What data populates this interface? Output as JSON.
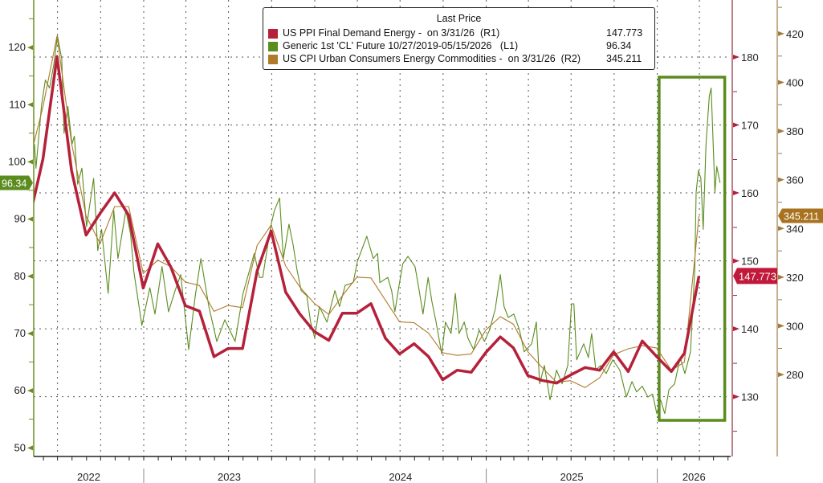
{
  "chart_data": {
    "type": "line",
    "legend": {
      "title": "Last Price",
      "placement": "top-center",
      "entries": [
        {
          "label": "US PPI Final Demand Energy -  on 3/31/26  (R1)",
          "value": "147.773",
          "color": "#b5213a"
        },
        {
          "label": "Generic 1st 'CL' Future 10/27/2019-05/15/2026   (L1)",
          "value": "96.34",
          "color": "#5b8c1e"
        },
        {
          "label": "US CPI Urban Consumers Energy Commodities -  on 3/31/26  (R2)",
          "value": "345.211",
          "color": "#b07a2a"
        }
      ]
    },
    "x_axis": {
      "labels": [
        "2022",
        "2023",
        "2024",
        "2025",
        "2026"
      ],
      "range": [
        "2022-05-12",
        "2026-06-10"
      ]
    },
    "axes": {
      "L1": {
        "range": [
          48.5,
          128.3
        ],
        "ticks": [
          "50",
          "60",
          "70",
          "80",
          "90",
          "100",
          "110",
          "120"
        ],
        "color": "#6b8e23",
        "last_label": "96.34"
      },
      "R1": {
        "range": [
          121.2,
          188.4
        ],
        "ticks": [
          "130",
          "140",
          "150",
          "160",
          "170",
          "180"
        ],
        "color": "#8b2a3a",
        "last_label": "147.773"
      },
      "R2": {
        "range": [
          246.4,
          433.8
        ],
        "ticks": [
          "280",
          "300",
          "320",
          "340",
          "360",
          "380",
          "400",
          "420"
        ],
        "color": "#a07a40",
        "last_label": "345.211"
      }
    },
    "grid": true,
    "highlight_box": {
      "from": "2026-01-05",
      "to": "2026-05-25",
      "color": "#5b8c1e"
    },
    "series": [
      {
        "name": "US PPI Final Demand Energy",
        "axis": "R1",
        "frequency": "monthly",
        "color": "#b5213a",
        "points": [
          [
            "2022-04",
            155.6
          ],
          [
            "2022-05",
            165.0
          ],
          [
            "2022-06",
            180.1
          ],
          [
            "2022-07",
            163.3
          ],
          [
            "2022-08",
            153.8
          ],
          [
            "2022-09",
            157.0
          ],
          [
            "2022-10",
            160.0
          ],
          [
            "2022-11",
            156.7
          ],
          [
            "2022-12",
            146.0
          ],
          [
            "2023-01",
            152.5
          ],
          [
            "2023-02",
            149.1
          ],
          [
            "2023-03",
            143.4
          ],
          [
            "2023-04",
            142.6
          ],
          [
            "2023-05",
            135.9
          ],
          [
            "2023-06",
            137.1
          ],
          [
            "2023-07",
            137.1
          ],
          [
            "2023-08",
            148.5
          ],
          [
            "2023-09",
            154.4
          ],
          [
            "2023-10",
            145.4
          ],
          [
            "2023-11",
            142.2
          ],
          [
            "2023-12",
            139.6
          ],
          [
            "2024-01",
            138.3
          ],
          [
            "2024-02",
            142.3
          ],
          [
            "2024-03",
            142.3
          ],
          [
            "2024-04",
            143.7
          ],
          [
            "2024-05",
            138.6
          ],
          [
            "2024-06",
            136.3
          ],
          [
            "2024-07",
            137.8
          ],
          [
            "2024-08",
            135.9
          ],
          [
            "2024-09",
            132.5
          ],
          [
            "2024-10",
            133.9
          ],
          [
            "2024-11",
            133.6
          ],
          [
            "2024-12",
            136.5
          ],
          [
            "2025-01",
            138.8
          ],
          [
            "2025-02",
            137.2
          ],
          [
            "2025-03",
            133.1
          ],
          [
            "2025-04",
            132.4
          ],
          [
            "2025-05",
            132.0
          ],
          [
            "2025-06",
            133.2
          ],
          [
            "2025-07",
            134.3
          ],
          [
            "2025-08",
            133.9
          ],
          [
            "2025-09",
            136.6
          ],
          [
            "2025-10",
            133.7
          ],
          [
            "2025-11",
            138.2
          ],
          [
            "2025-12",
            135.9
          ],
          [
            "2026-01",
            133.7
          ],
          [
            "2026-02",
            136.4
          ],
          [
            "2026-03",
            147.773
          ]
        ]
      },
      {
        "name": "Generic 1st 'CL' Future",
        "axis": "L1",
        "frequency": "daily",
        "color": "#5b8c1e",
        "points": [
          [
            "2022-05-13",
            103.1
          ],
          [
            "2022-05-16",
            98.9
          ],
          [
            "2022-05-28",
            110.0
          ],
          [
            "2022-06-05",
            114.3
          ],
          [
            "2022-06-14",
            112.9
          ],
          [
            "2022-06-23",
            117.0
          ],
          [
            "2022-07-01",
            122.0
          ],
          [
            "2022-07-10",
            118.0
          ],
          [
            "2022-07-15",
            105.0
          ],
          [
            "2022-07-23",
            109.7
          ],
          [
            "2022-08-01",
            103.1
          ],
          [
            "2022-08-06",
            104.5
          ],
          [
            "2022-08-13",
            96.1
          ],
          [
            "2022-08-22",
            98.9
          ],
          [
            "2022-09-01",
            88.7
          ],
          [
            "2022-09-16",
            97.1
          ],
          [
            "2022-09-25",
            84.5
          ],
          [
            "2022-10-03",
            88.2
          ],
          [
            "2022-10-17",
            77.0
          ],
          [
            "2022-10-29",
            91.5
          ],
          [
            "2022-11-07",
            83.1
          ],
          [
            "2022-11-24",
            91.5
          ],
          [
            "2022-12-04",
            87.3
          ],
          [
            "2022-12-11",
            80.8
          ],
          [
            "2022-12-28",
            71.4
          ],
          [
            "2023-01-14",
            78.0
          ],
          [
            "2023-01-25",
            73.4
          ],
          [
            "2023-02-09",
            81.7
          ],
          [
            "2023-02-23",
            73.8
          ],
          [
            "2023-03-09",
            77.5
          ],
          [
            "2023-03-21",
            80.3
          ],
          [
            "2023-04-07",
            67.2
          ],
          [
            "2023-04-21",
            76.6
          ],
          [
            "2023-05-03",
            83.1
          ],
          [
            "2023-05-20",
            74.7
          ],
          [
            "2023-06-06",
            68.6
          ],
          [
            "2023-06-23",
            72.4
          ],
          [
            "2023-07-15",
            68.6
          ],
          [
            "2023-08-01",
            77.0
          ],
          [
            "2023-08-25",
            84.0
          ],
          [
            "2023-09-05",
            79.8
          ],
          [
            "2023-09-12",
            79.8
          ],
          [
            "2023-09-29",
            88.7
          ],
          [
            "2023-10-07",
            91.5
          ],
          [
            "2023-10-18",
            93.7
          ],
          [
            "2023-10-26",
            83.1
          ],
          [
            "2023-11-07",
            89.1
          ],
          [
            "2023-11-16",
            85.4
          ],
          [
            "2023-11-24",
            81.2
          ],
          [
            "2023-12-03",
            77.5
          ],
          [
            "2023-12-15",
            76.6
          ],
          [
            "2023-12-23",
            72.0
          ],
          [
            "2024-01-01",
            69.2
          ],
          [
            "2024-01-11",
            74.7
          ],
          [
            "2024-01-27",
            72.0
          ],
          [
            "2024-02-13",
            77.5
          ],
          [
            "2024-02-23",
            74.7
          ],
          [
            "2024-03-06",
            78.4
          ],
          [
            "2024-03-23",
            78.9
          ],
          [
            "2024-04-01",
            82.6
          ],
          [
            "2024-04-21",
            87.0
          ],
          [
            "2024-05-05",
            83.1
          ],
          [
            "2024-05-14",
            84.0
          ],
          [
            "2024-05-19",
            78.9
          ],
          [
            "2024-06-05",
            79.8
          ],
          [
            "2024-06-13",
            77.5
          ],
          [
            "2024-06-20",
            73.8
          ],
          [
            "2024-06-29",
            78.4
          ],
          [
            "2024-07-07",
            82.2
          ],
          [
            "2024-07-18",
            83.5
          ],
          [
            "2024-08-02",
            81.7
          ],
          [
            "2024-08-11",
            77.5
          ],
          [
            "2024-08-19",
            73.4
          ],
          [
            "2024-08-30",
            79.8
          ],
          [
            "2024-09-07",
            75.6
          ],
          [
            "2024-09-16",
            72.0
          ],
          [
            "2024-09-28",
            66.4
          ],
          [
            "2024-10-06",
            72.0
          ],
          [
            "2024-10-18",
            70.0
          ],
          [
            "2024-10-27",
            77.0
          ],
          [
            "2024-11-04",
            70.0
          ],
          [
            "2024-11-15",
            72.0
          ],
          [
            "2024-11-23",
            69.2
          ],
          [
            "2024-12-05",
            67.2
          ],
          [
            "2024-12-17",
            70.6
          ],
          [
            "2024-12-28",
            68.6
          ],
          [
            "2025-01-08",
            70.6
          ],
          [
            "2025-01-20",
            74.2
          ],
          [
            "2025-01-31",
            80.3
          ],
          [
            "2025-02-08",
            74.7
          ],
          [
            "2025-02-17",
            72.8
          ],
          [
            "2025-03-01",
            73.4
          ],
          [
            "2025-03-13",
            70.6
          ],
          [
            "2025-03-23",
            66.8
          ],
          [
            "2025-04-08",
            68.2
          ],
          [
            "2025-04-18",
            72.0
          ],
          [
            "2025-04-25",
            61.2
          ],
          [
            "2025-05-05",
            64.4
          ],
          [
            "2025-05-17",
            58.4
          ],
          [
            "2025-05-31",
            63.6
          ],
          [
            "2025-06-12",
            61.2
          ],
          [
            "2025-06-24",
            64.4
          ],
          [
            "2025-07-02",
            75.2
          ],
          [
            "2025-07-07",
            75.2
          ],
          [
            "2025-07-13",
            65.4
          ],
          [
            "2025-07-28",
            68.2
          ],
          [
            "2025-08-07",
            65.8
          ],
          [
            "2025-08-14",
            70.0
          ],
          [
            "2025-08-23",
            63.6
          ],
          [
            "2025-09-02",
            64.4
          ],
          [
            "2025-09-14",
            63.0
          ],
          [
            "2025-09-28",
            65.4
          ],
          [
            "2025-10-13",
            63.6
          ],
          [
            "2025-10-27",
            58.9
          ],
          [
            "2025-11-08",
            61.6
          ],
          [
            "2025-11-18",
            59.8
          ],
          [
            "2025-11-30",
            60.8
          ],
          [
            "2025-12-12",
            58.9
          ],
          [
            "2025-12-22",
            59.4
          ],
          [
            "2025-12-31",
            56.0
          ],
          [
            "2026-01-08",
            58.4
          ],
          [
            "2026-01-17",
            56.0
          ],
          [
            "2026-01-26",
            60.2
          ],
          [
            "2026-02-07",
            61.2
          ],
          [
            "2026-02-19",
            65.8
          ],
          [
            "2026-03-01",
            63.0
          ],
          [
            "2026-03-13",
            66.8
          ],
          [
            "2026-03-22",
            81.2
          ],
          [
            "2026-03-25",
            94.7
          ],
          [
            "2026-03-30",
            98.5
          ],
          [
            "2026-04-04",
            97.1
          ],
          [
            "2026-04-09",
            88.2
          ],
          [
            "2026-04-15",
            103.1
          ],
          [
            "2026-04-22",
            111.5
          ],
          [
            "2026-04-26",
            112.9
          ],
          [
            "2026-05-04",
            94.7
          ],
          [
            "2026-05-08",
            99.2
          ],
          [
            "2026-05-15",
            96.34
          ]
        ]
      },
      {
        "name": "US CPI Urban Consumers Energy Commodities",
        "axis": "R2",
        "frequency": "monthly",
        "color": "#b07a2a",
        "points": [
          [
            "2022-04",
            366.0
          ],
          [
            "2022-05",
            390.0
          ],
          [
            "2022-06",
            419.0
          ],
          [
            "2022-07",
            375.0
          ],
          [
            "2022-08",
            345.1
          ],
          [
            "2022-09",
            333.8
          ],
          [
            "2022-10",
            349.0
          ],
          [
            "2022-11",
            349.0
          ],
          [
            "2022-12",
            321.5
          ],
          [
            "2023-01",
            327.0
          ],
          [
            "2023-02",
            324.3
          ],
          [
            "2023-03",
            318.0
          ],
          [
            "2023-04",
            316.6
          ],
          [
            "2023-05",
            306.0
          ],
          [
            "2023-06",
            308.4
          ],
          [
            "2023-07",
            307.5
          ],
          [
            "2023-08",
            333.0
          ],
          [
            "2023-09",
            341.4
          ],
          [
            "2023-10",
            324.6
          ],
          [
            "2023-11",
            316.0
          ],
          [
            "2023-12",
            309.3
          ],
          [
            "2024-01",
            304.7
          ],
          [
            "2024-02",
            312.4
          ],
          [
            "2024-03",
            320.0
          ],
          [
            "2024-04",
            319.7
          ],
          [
            "2024-05",
            310.5
          ],
          [
            "2024-06",
            301.7
          ],
          [
            "2024-07",
            301.3
          ],
          [
            "2024-08",
            297.0
          ],
          [
            "2024-09",
            289.0
          ],
          [
            "2024-10",
            287.9
          ],
          [
            "2024-11",
            288.5
          ],
          [
            "2024-12",
            298.3
          ],
          [
            "2025-01",
            303.8
          ],
          [
            "2025-02",
            300.7
          ],
          [
            "2025-03",
            289.4
          ],
          [
            "2025-04",
            283.0
          ],
          [
            "2025-05",
            276.9
          ],
          [
            "2025-06",
            277.5
          ],
          [
            "2025-07",
            274.7
          ],
          [
            "2025-08",
            278.7
          ],
          [
            "2025-09",
            288.2
          ],
          [
            "2025-10",
            290.6
          ],
          [
            "2025-11",
            291.9
          ],
          [
            "2025-12",
            290.9
          ],
          [
            "2026-01",
            281.8
          ],
          [
            "2026-02",
            285.1
          ],
          [
            "2026-03",
            345.211
          ]
        ]
      }
    ]
  }
}
